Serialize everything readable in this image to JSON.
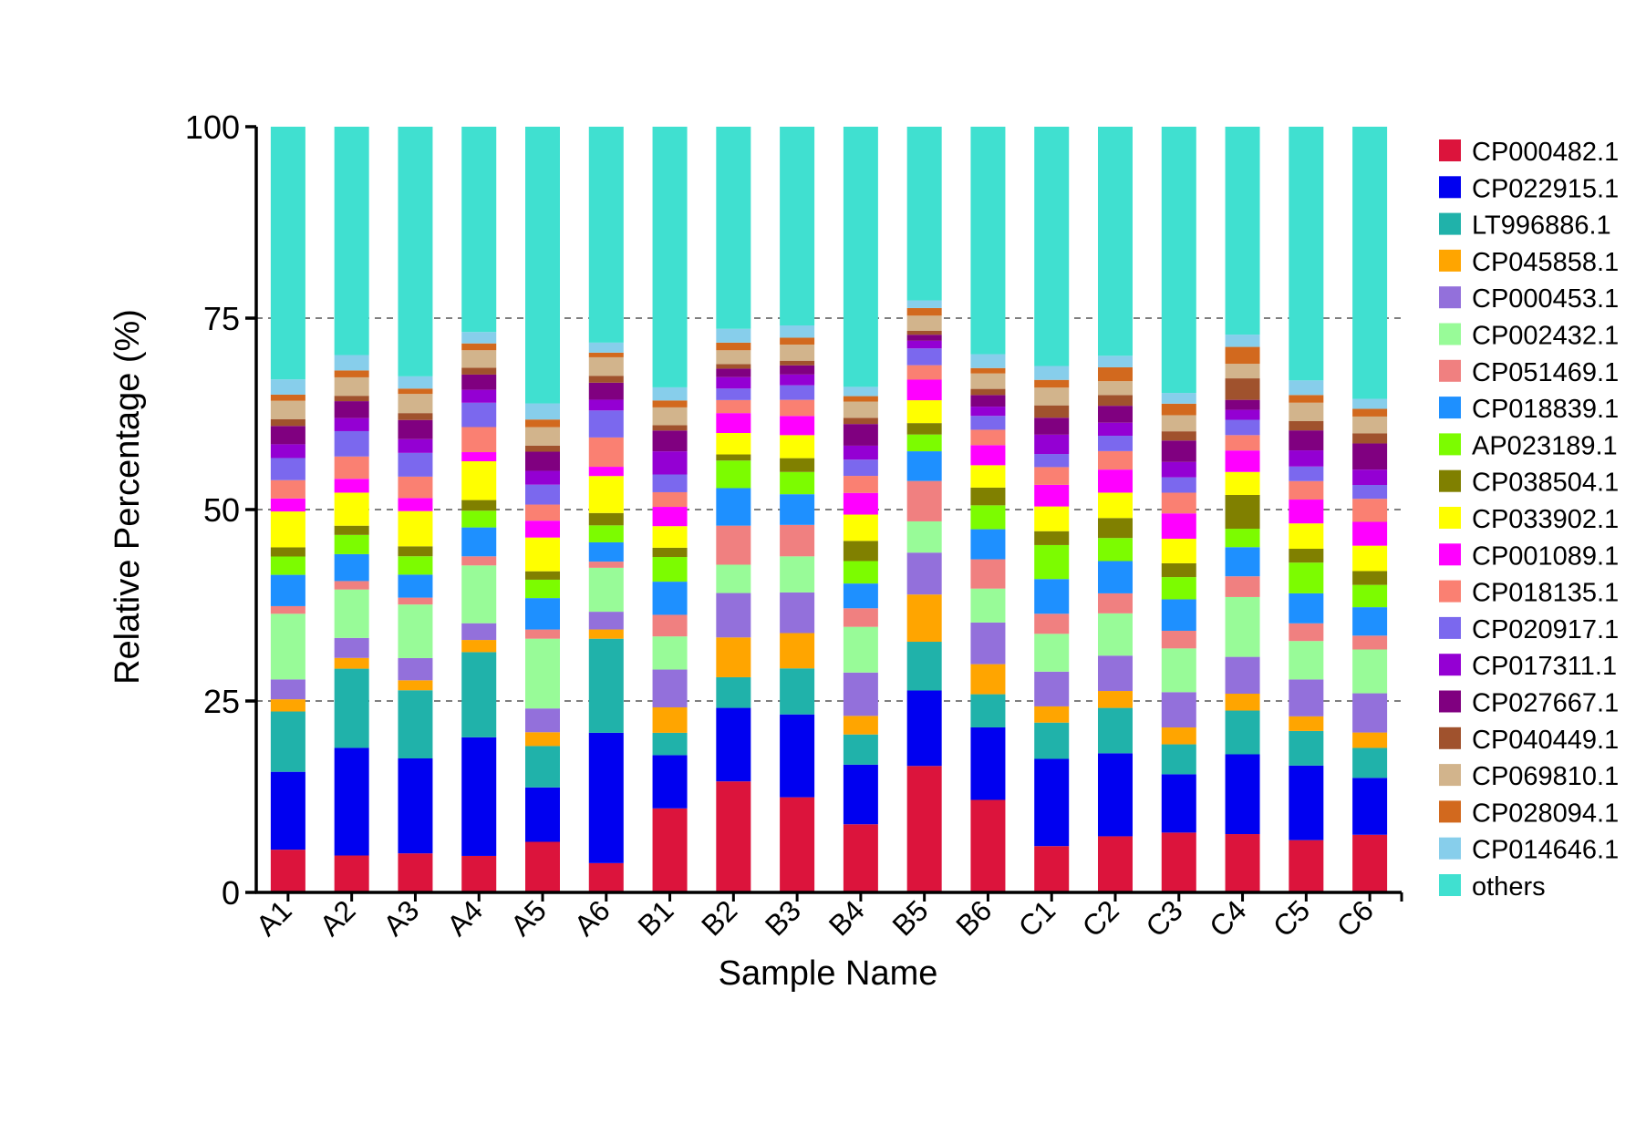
{
  "chart_data": {
    "type": "bar",
    "stacked": true,
    "xlabel": "Sample Name",
    "ylabel": "Relative Percentage (%)",
    "ylim": [
      0,
      100
    ],
    "yticks": [
      0,
      25,
      50,
      75,
      100
    ],
    "grid": "dashed horizontal at 25, 50, 75",
    "legend_position": "right",
    "categories": [
      "A1",
      "A2",
      "A3",
      "A4",
      "A5",
      "A6",
      "B1",
      "B2",
      "B3",
      "B4",
      "B5",
      "B6",
      "C1",
      "C2",
      "C3",
      "C4",
      "C5",
      "C6"
    ],
    "series": [
      {
        "name": "CP000482.1",
        "color": "#DC143C",
        "values": [
          5.6,
          4.8,
          5.1,
          4.8,
          6.6,
          3.8,
          10.9,
          14.5,
          12.4,
          8.8,
          16.6,
          12.0,
          6.0,
          7.3,
          7.8,
          7.6,
          6.8,
          7.5
        ]
      },
      {
        "name": "CP022915.1",
        "color": "#0000F0",
        "values": [
          10.2,
          14.0,
          12.4,
          15.6,
          7.1,
          16.9,
          6.9,
          9.6,
          10.8,
          7.7,
          9.9,
          9.4,
          11.3,
          10.8,
          7.6,
          10.4,
          9.7,
          7.4
        ]
      },
      {
        "name": "LT996886.1",
        "color": "#20B2AA",
        "values": [
          7.9,
          10.3,
          8.9,
          11.2,
          5.4,
          12.2,
          2.9,
          4.0,
          6.0,
          3.9,
          6.4,
          4.3,
          4.7,
          5.9,
          3.9,
          5.7,
          4.5,
          3.9
        ]
      },
      {
        "name": "CP045858.1",
        "color": "#FFA500",
        "values": [
          1.6,
          1.4,
          1.3,
          1.6,
          1.8,
          1.2,
          3.3,
          5.2,
          4.6,
          2.4,
          6.2,
          3.9,
          2.1,
          2.2,
          2.2,
          2.2,
          1.9,
          2.0
        ]
      },
      {
        "name": "CP000453.1",
        "color": "#9370DB",
        "values": [
          2.6,
          2.6,
          2.9,
          2.2,
          3.1,
          2.3,
          4.9,
          5.8,
          5.3,
          5.6,
          5.5,
          5.4,
          4.5,
          4.6,
          4.6,
          4.8,
          4.8,
          5.1
        ]
      },
      {
        "name": "CP002432.1",
        "color": "#98FB98",
        "values": [
          8.6,
          6.3,
          7.0,
          7.6,
          9.1,
          5.7,
          4.3,
          3.7,
          4.7,
          5.9,
          4.1,
          4.4,
          4.9,
          5.5,
          5.7,
          7.8,
          5.0,
          5.7
        ]
      },
      {
        "name": "CP051469.1",
        "color": "#F08080",
        "values": [
          1.0,
          1.1,
          0.9,
          1.2,
          1.2,
          0.8,
          2.8,
          5.1,
          4.1,
          2.4,
          5.3,
          3.8,
          2.6,
          2.6,
          2.3,
          2.7,
          2.3,
          1.8
        ]
      },
      {
        "name": "CP018839.1",
        "color": "#1E90FF",
        "values": [
          4.1,
          3.5,
          3.0,
          3.8,
          4.1,
          2.5,
          4.3,
          4.9,
          4.0,
          3.2,
          3.9,
          3.9,
          4.5,
          4.2,
          4.1,
          3.8,
          3.9,
          3.7
        ]
      },
      {
        "name": "AP023189.1",
        "color": "#7CFC00",
        "values": [
          2.4,
          2.5,
          2.4,
          2.2,
          2.4,
          2.2,
          3.2,
          3.6,
          2.9,
          2.9,
          2.2,
          3.1,
          4.4,
          3.0,
          2.9,
          2.4,
          4.0,
          2.9
        ]
      },
      {
        "name": "CP038504.1",
        "color": "#808000",
        "values": [
          1.2,
          1.2,
          1.3,
          1.4,
          1.1,
          1.6,
          1.2,
          0.8,
          1.8,
          2.6,
          1.5,
          2.3,
          1.8,
          2.6,
          1.8,
          4.4,
          1.8,
          1.8
        ]
      },
      {
        "name": "CP033902.1",
        "color": "#FFFF00",
        "values": [
          4.7,
          4.3,
          4.6,
          5.1,
          4.4,
          4.8,
          2.8,
          2.8,
          3.0,
          3.4,
          3.0,
          2.9,
          3.2,
          3.3,
          3.2,
          3.0,
          3.3,
          3.3
        ]
      },
      {
        "name": "CP001089.1",
        "color": "#FF00FF",
        "values": [
          1.7,
          1.8,
          1.7,
          1.2,
          2.2,
          1.2,
          2.5,
          2.6,
          2.5,
          2.8,
          2.7,
          2.6,
          2.8,
          3.0,
          3.3,
          2.8,
          3.1,
          3.1
        ]
      },
      {
        "name": "CP018135.1",
        "color": "#FA8072",
        "values": [
          2.4,
          2.9,
          2.8,
          3.3,
          2.1,
          3.8,
          1.9,
          1.7,
          2.1,
          2.2,
          1.9,
          2.0,
          2.3,
          2.4,
          2.7,
          2.0,
          2.4,
          3.0
        ]
      },
      {
        "name": "CP020917.1",
        "color": "#7B68EE",
        "values": [
          2.9,
          3.3,
          3.1,
          3.2,
          2.6,
          3.5,
          2.3,
          1.5,
          1.9,
          2.1,
          2.2,
          1.8,
          1.7,
          2.0,
          2.0,
          2.0,
          1.9,
          1.8
        ]
      },
      {
        "name": "CP017311.1",
        "color": "#9400D3",
        "values": [
          1.8,
          1.7,
          1.8,
          1.7,
          1.8,
          1.4,
          3.0,
          1.5,
          1.4,
          1.8,
          1.0,
          1.2,
          2.5,
          1.7,
          2.0,
          1.3,
          2.1,
          2.0
        ]
      },
      {
        "name": "CP027667.1",
        "color": "#800080",
        "values": [
          2.4,
          2.2,
          2.5,
          2.0,
          2.5,
          2.2,
          2.7,
          1.1,
          1.2,
          2.8,
          0.8,
          1.5,
          2.2,
          2.2,
          2.8,
          1.3,
          2.6,
          3.4
        ]
      },
      {
        "name": "CP040449.1",
        "color": "#A0522D",
        "values": [
          0.9,
          0.7,
          0.9,
          0.9,
          0.8,
          0.9,
          0.7,
          0.6,
          0.6,
          0.8,
          0.5,
          0.8,
          1.6,
          1.4,
          1.2,
          2.8,
          1.2,
          1.3
        ]
      },
      {
        "name": "CP069810.1",
        "color": "#D2B48C",
        "values": [
          2.4,
          2.4,
          2.5,
          2.3,
          2.4,
          2.4,
          2.3,
          1.8,
          2.1,
          2.1,
          2.0,
          2.0,
          2.3,
          1.8,
          2.1,
          1.9,
          2.4,
          2.2
        ]
      },
      {
        "name": "CP028094.1",
        "color": "#D2691E",
        "values": [
          0.8,
          0.9,
          0.7,
          0.9,
          1.0,
          0.6,
          0.9,
          1.0,
          0.9,
          0.7,
          1.0,
          0.7,
          1.0,
          1.8,
          1.5,
          2.2,
          1.0,
          1.0
        ]
      },
      {
        "name": "CP014646.1",
        "color": "#87CEEB",
        "values": [
          2.0,
          2.0,
          1.6,
          1.5,
          2.1,
          1.3,
          1.7,
          1.8,
          1.6,
          1.2,
          1.0,
          1.8,
          1.8,
          1.5,
          1.4,
          1.6,
          1.9,
          1.3
        ]
      },
      {
        "name": "others",
        "color": "#40E0D0",
        "values": [
          33.1,
          29.7,
          32.6,
          27.0,
          36.1,
          28.0,
          33.8,
          26.4,
          25.9,
          33.6,
          22.8,
          29.5,
          31.0,
          29.8,
          34.7,
          27.1,
          33.0,
          35.4
        ]
      }
    ]
  }
}
